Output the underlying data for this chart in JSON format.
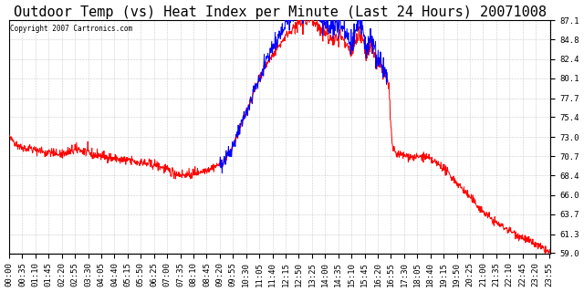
{
  "title": "Outdoor Temp (vs) Heat Index per Minute (Last 24 Hours) 20071008",
  "copyright_text": "Copyright 2007 Cartronics.com",
  "y_ticks": [
    59.0,
    61.3,
    63.7,
    66.0,
    68.4,
    70.7,
    73.0,
    75.4,
    77.7,
    80.1,
    82.4,
    84.8,
    87.1
  ],
  "x_tick_labels": [
    "00:00",
    "00:35",
    "01:10",
    "01:45",
    "02:20",
    "02:55",
    "03:30",
    "04:05",
    "04:40",
    "05:15",
    "05:50",
    "06:25",
    "07:00",
    "07:35",
    "08:10",
    "08:45",
    "09:20",
    "09:55",
    "10:30",
    "11:05",
    "11:40",
    "12:15",
    "12:50",
    "13:25",
    "14:00",
    "14:35",
    "15:10",
    "15:45",
    "16:20",
    "16:55",
    "17:30",
    "18:05",
    "18:40",
    "19:15",
    "19:50",
    "20:25",
    "21:00",
    "21:35",
    "22:10",
    "22:45",
    "23:20",
    "23:55"
  ],
  "background_color": "#ffffff",
  "plot_bg_color": "#ffffff",
  "grid_color": "#aaaaaa",
  "red_color": "#ff0000",
  "blue_color": "#0000ff",
  "title_fontsize": 11,
  "copyright_fontsize": 5.5,
  "tick_fontsize": 6.5,
  "ymin": 59.0,
  "ymax": 87.1
}
